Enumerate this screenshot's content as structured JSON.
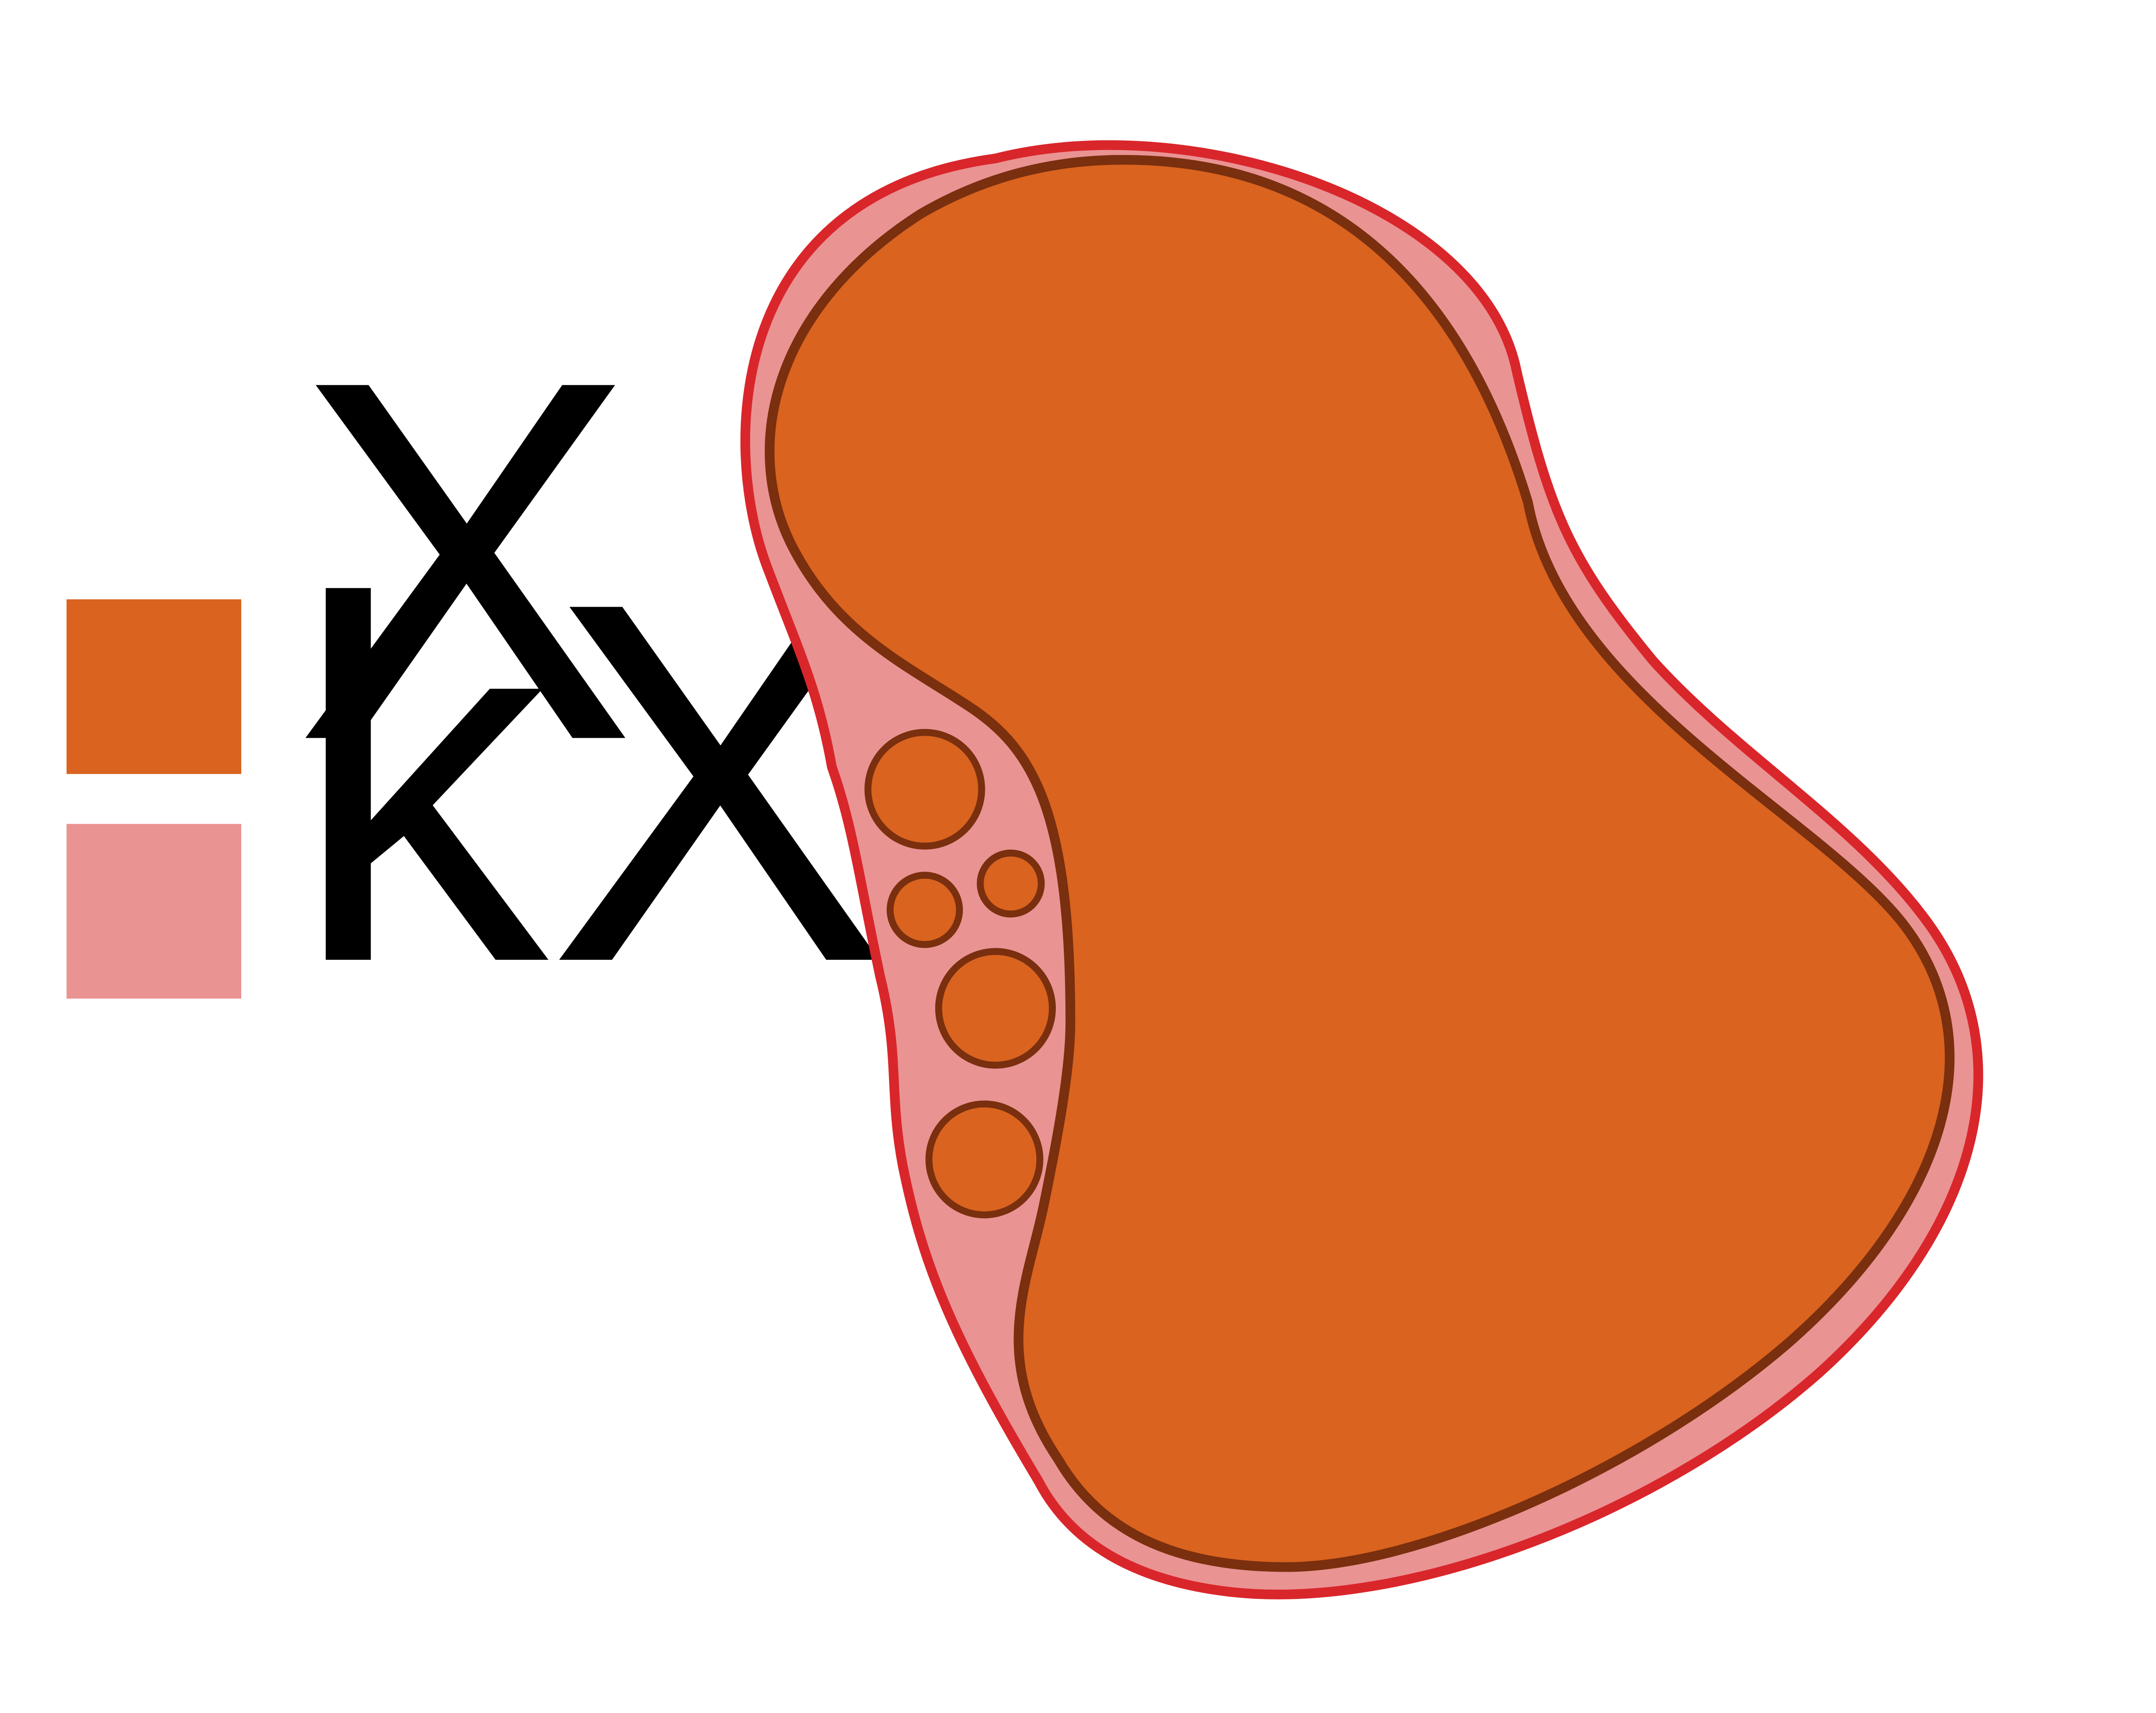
{
  "legend": {
    "items": [
      {
        "label": "X",
        "color": "#D9631F"
      },
      {
        "label": "kX",
        "color": "#EA9393"
      }
    ]
  },
  "colors": {
    "outer_region_fill": "#EA9393",
    "outer_region_stroke": "#D9262B",
    "inner_region_fill": "#D9631F",
    "inner_region_stroke": "#7A2F0E",
    "label_text": "#000000"
  }
}
